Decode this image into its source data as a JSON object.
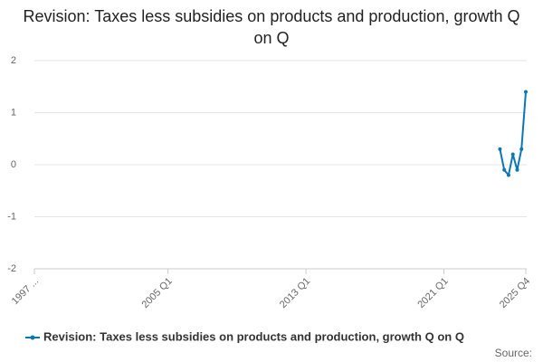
{
  "chart_data": {
    "type": "line",
    "title": "Revision: Taxes less subsidies on products and production, growth Q on Q",
    "categories": [
      "1997 ...",
      null,
      null,
      null,
      null,
      null,
      null,
      null,
      null,
      null,
      null,
      null,
      null,
      null,
      null,
      null,
      null,
      null,
      null,
      null,
      null,
      null,
      null,
      null,
      null,
      null,
      null,
      null,
      null,
      null,
      null,
      "2005 Q1",
      null,
      null,
      null,
      null,
      null,
      null,
      null,
      null,
      null,
      null,
      null,
      null,
      null,
      null,
      null,
      null,
      null,
      null,
      null,
      null,
      null,
      null,
      null,
      null,
      null,
      null,
      null,
      null,
      null,
      null,
      null,
      "2013 Q1",
      null,
      null,
      null,
      null,
      null,
      null,
      null,
      null,
      null,
      null,
      null,
      null,
      null,
      null,
      null,
      null,
      null,
      null,
      null,
      null,
      null,
      null,
      null,
      null,
      null,
      null,
      null,
      null,
      null,
      null,
      null,
      "2021 Q1",
      null,
      null,
      null,
      null,
      null,
      null,
      null,
      null,
      null,
      null,
      null,
      null,
      null,
      null,
      null,
      null,
      null,
      null,
      "2025 Q4"
    ],
    "series": [
      {
        "name": "Revision: Taxes less subsidies on products and production, growth Q on Q",
        "color": "#0b77b5",
        "values": [
          null,
          null,
          null,
          null,
          null,
          null,
          null,
          null,
          null,
          null,
          null,
          null,
          null,
          null,
          null,
          null,
          null,
          null,
          null,
          null,
          null,
          null,
          null,
          null,
          null,
          null,
          null,
          null,
          null,
          null,
          null,
          null,
          null,
          null,
          null,
          null,
          null,
          null,
          null,
          null,
          null,
          null,
          null,
          null,
          null,
          null,
          null,
          null,
          null,
          null,
          null,
          null,
          null,
          null,
          null,
          null,
          null,
          null,
          null,
          null,
          null,
          null,
          null,
          null,
          null,
          null,
          null,
          null,
          null,
          null,
          null,
          null,
          null,
          null,
          null,
          null,
          null,
          null,
          null,
          null,
          null,
          null,
          null,
          null,
          null,
          null,
          null,
          null,
          null,
          null,
          null,
          null,
          null,
          null,
          null,
          null,
          null,
          null,
          null,
          null,
          null,
          null,
          null,
          null,
          null,
          null,
          null,
          null,
          0.3,
          -0.1,
          -0.2,
          0.2,
          -0.1,
          0.3,
          1.4
        ]
      }
    ],
    "ylim": [
      -2,
      2
    ],
    "yticks": [
      -2,
      -1,
      0,
      1,
      2
    ],
    "grid": true,
    "legend": "bottom",
    "source": "Source:"
  }
}
